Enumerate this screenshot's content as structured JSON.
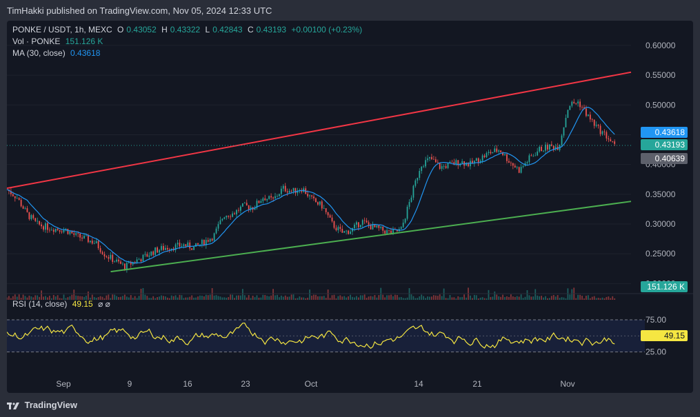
{
  "header": {
    "publisher": "TimHakki published on TradingView.com, Nov 05, 2024 12:33 UTC"
  },
  "legend": {
    "symbol": "PONKE / USDT, 1h, MEXC",
    "o_label": "O",
    "o": "0.43052",
    "h_label": "H",
    "h": "0.43322",
    "l_label": "L",
    "l": "0.42843",
    "c_label": "C",
    "c": "0.43193",
    "change": "+0.00100 (+0.23%)",
    "vol_label": "Vol · PONKE",
    "vol": "151.126 K",
    "ma_label": "MA (30, close)",
    "ma": "0.43618",
    "rsi_label": "RSI (14, close)",
    "rsi": "49.15",
    "rsi_icons": "⌀  ⌀"
  },
  "tags": {
    "ma": "0.43618",
    "close": "0.43193",
    "low": "0.40639",
    "vol": "151.126 K",
    "rsi": "49.15"
  },
  "footer": {
    "brand": "TradingView",
    "logo": "tradingview-logo"
  },
  "colors": {
    "bg": "#131722",
    "up": "#26a69a",
    "down": "#ef5350",
    "ma": "#2196f3",
    "resistance": "#f23645",
    "support": "#4caf50",
    "rsi": "#f5e642"
  },
  "chart_data": {
    "type": "candlestick",
    "title": "PONKE / USDT, 1h, MEXC",
    "yaxis": {
      "ticks": [
        "0.60000",
        "0.55000",
        "0.50000",
        "0.45000",
        "0.40000",
        "0.35000",
        "0.30000",
        "0.25000",
        "0.20000"
      ],
      "range": [
        0.19,
        0.63
      ]
    },
    "xaxis": {
      "ticks": [
        "Sep",
        "9",
        "16",
        "23",
        "Oct",
        "14",
        "21",
        "Nov"
      ]
    },
    "close_path": [
      [
        0,
        0.358
      ],
      [
        1.5,
        0.345
      ],
      [
        3,
        0.318
      ],
      [
        4.5,
        0.3
      ],
      [
        6,
        0.295
      ],
      [
        7.5,
        0.292
      ],
      [
        9,
        0.29
      ],
      [
        10.5,
        0.28
      ],
      [
        12,
        0.275
      ],
      [
        13.5,
        0.268
      ],
      [
        15,
        0.248
      ],
      [
        16.5,
        0.238
      ],
      [
        18,
        0.228
      ],
      [
        19.5,
        0.238
      ],
      [
        21,
        0.245
      ],
      [
        22.5,
        0.255
      ],
      [
        24,
        0.26
      ],
      [
        25.5,
        0.262
      ],
      [
        27,
        0.265
      ],
      [
        28.5,
        0.26
      ],
      [
        30,
        0.27
      ],
      [
        31.5,
        0.28
      ],
      [
        33,
        0.315
      ],
      [
        34.5,
        0.318
      ],
      [
        36,
        0.33
      ],
      [
        37.5,
        0.328
      ],
      [
        39,
        0.345
      ],
      [
        40.5,
        0.34
      ],
      [
        42,
        0.36
      ],
      [
        43.5,
        0.355
      ],
      [
        45,
        0.36
      ],
      [
        46.5,
        0.34
      ],
      [
        48,
        0.33
      ],
      [
        49.5,
        0.3
      ],
      [
        51,
        0.285
      ],
      [
        52.5,
        0.29
      ],
      [
        54,
        0.305
      ],
      [
        55.5,
        0.295
      ],
      [
        57,
        0.29
      ],
      [
        58.5,
        0.285
      ],
      [
        60,
        0.29
      ],
      [
        61.5,
        0.345
      ],
      [
        63,
        0.4
      ],
      [
        64.5,
        0.41
      ],
      [
        66,
        0.395
      ],
      [
        67.5,
        0.4
      ],
      [
        69,
        0.405
      ],
      [
        70.5,
        0.4
      ],
      [
        72,
        0.41
      ],
      [
        73.5,
        0.42
      ],
      [
        75,
        0.425
      ],
      [
        76.5,
        0.405
      ],
      [
        78,
        0.39
      ],
      [
        79.5,
        0.41
      ],
      [
        81,
        0.425
      ],
      [
        82.5,
        0.43
      ],
      [
        84,
        0.43
      ],
      [
        85.5,
        0.5
      ],
      [
        87,
        0.505
      ],
      [
        88.5,
        0.48
      ],
      [
        90,
        0.46
      ],
      [
        91.5,
        0.445
      ],
      [
        92.5,
        0.43
      ]
    ],
    "ma_value": "0.43618",
    "resistance_line": [
      [
        0,
        0.36
      ],
      [
        95,
        0.555
      ]
    ],
    "support_line": [
      [
        15.8,
        0.22
      ],
      [
        95,
        0.338
      ]
    ],
    "volume_last": "151.126 K",
    "rsi": {
      "levels": [
        "75.00",
        "25.00"
      ],
      "last": "49.15",
      "range": [
        15,
        90
      ]
    }
  }
}
